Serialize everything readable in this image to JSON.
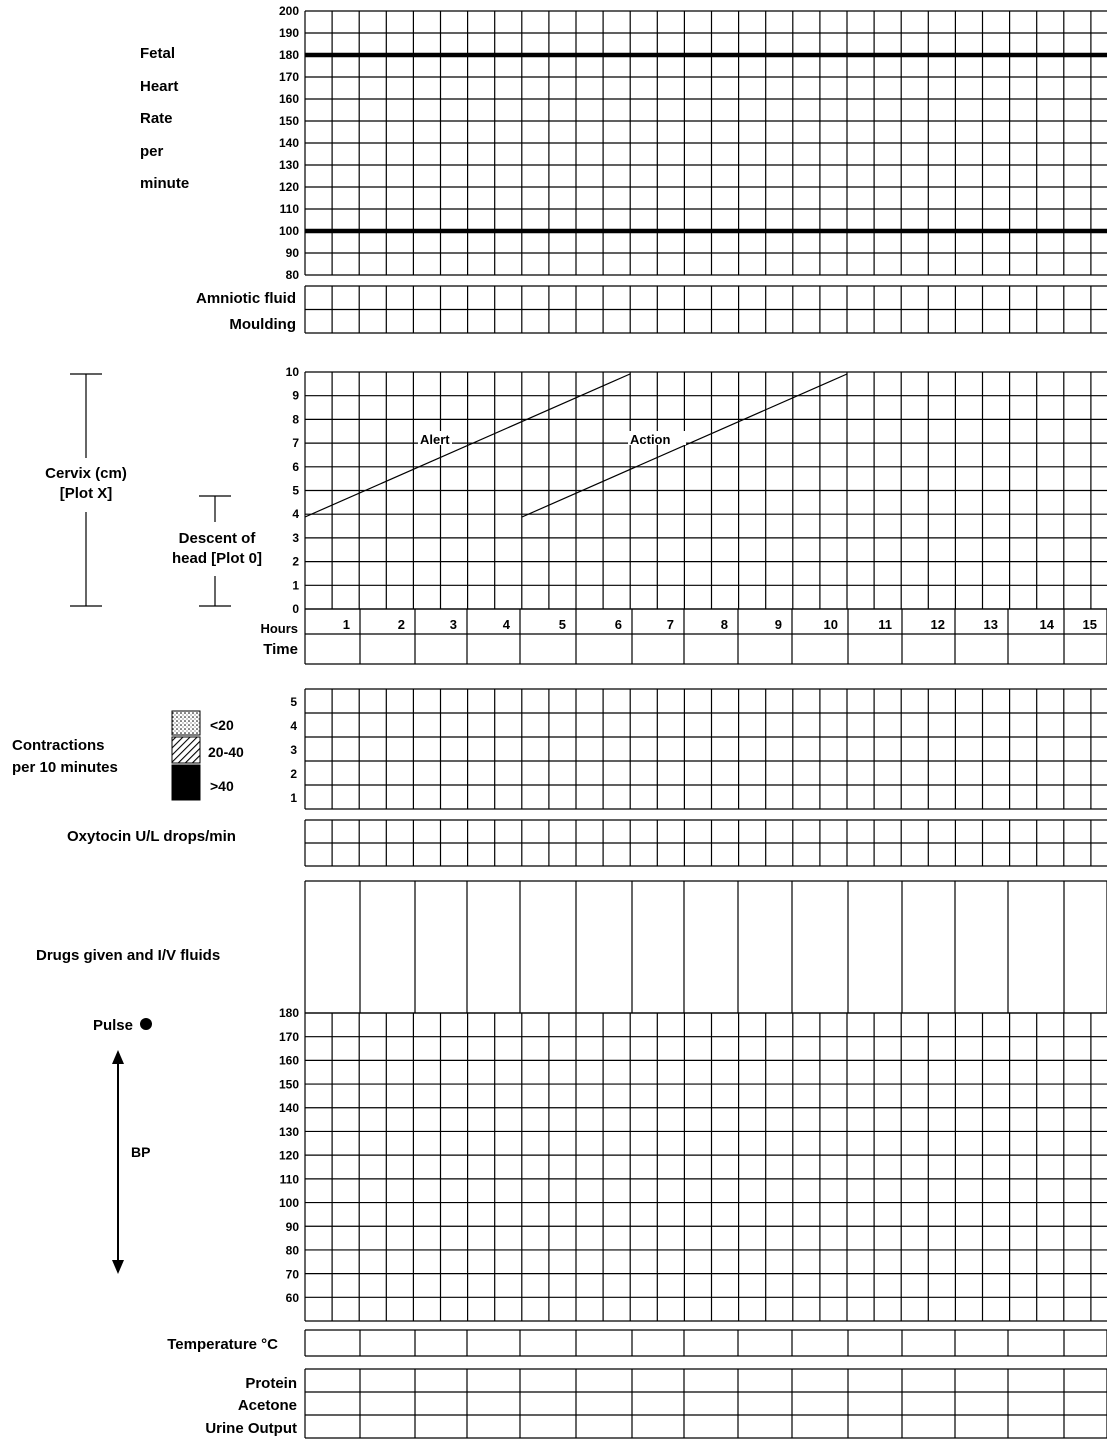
{
  "fetal_heart": {
    "labels": [
      "Fetal",
      "Heart",
      "Rate",
      "per",
      "minute"
    ],
    "ticks": [
      "200",
      "190",
      "180",
      "170",
      "160",
      "150",
      "140",
      "130",
      "120",
      "110",
      "100",
      "90",
      "80"
    ],
    "reference_lines": [
      180,
      100
    ]
  },
  "amniotic_fluid_label": "Amniotic fluid",
  "moulding_label": "Moulding",
  "cervix_label_line1": "Cervix (cm)",
  "cervix_label_line2": "[Plot X]",
  "descent_label_line1": "Descent of",
  "descent_label_line2": "head [Plot 0]",
  "cervix_ticks": [
    "10",
    "9",
    "8",
    "7",
    "6",
    "5",
    "4",
    "3",
    "2",
    "1",
    "0"
  ],
  "alert_label": "Alert",
  "action_label": "Action",
  "hours_label": "Hours",
  "time_label": "Time",
  "hours": [
    "1",
    "2",
    "3",
    "4",
    "5",
    "6",
    "7",
    "8",
    "9",
    "10",
    "11",
    "12",
    "13",
    "14",
    "15"
  ],
  "contractions": {
    "label_line1": "Contractions",
    "label_line2": "per 10 minutes",
    "legend": [
      "<20",
      "20-40",
      ">40"
    ],
    "ticks": [
      "5",
      "4",
      "3",
      "2",
      "1"
    ]
  },
  "oxytocin_label": "Oxytocin U/L drops/min",
  "drugs_label": "Drugs given and I/V fluids",
  "pulse_label": "Pulse",
  "bp_label": "BP",
  "pulse_bp_ticks": [
    "180",
    "170",
    "160",
    "150",
    "140",
    "130",
    "120",
    "110",
    "100",
    "90",
    "80",
    "70",
    "60"
  ],
  "temperature_label": "Temperature °C",
  "urine": {
    "protein_label": "Protein",
    "acetone_label": "Acetone",
    "output_label": "Urine Output"
  }
}
